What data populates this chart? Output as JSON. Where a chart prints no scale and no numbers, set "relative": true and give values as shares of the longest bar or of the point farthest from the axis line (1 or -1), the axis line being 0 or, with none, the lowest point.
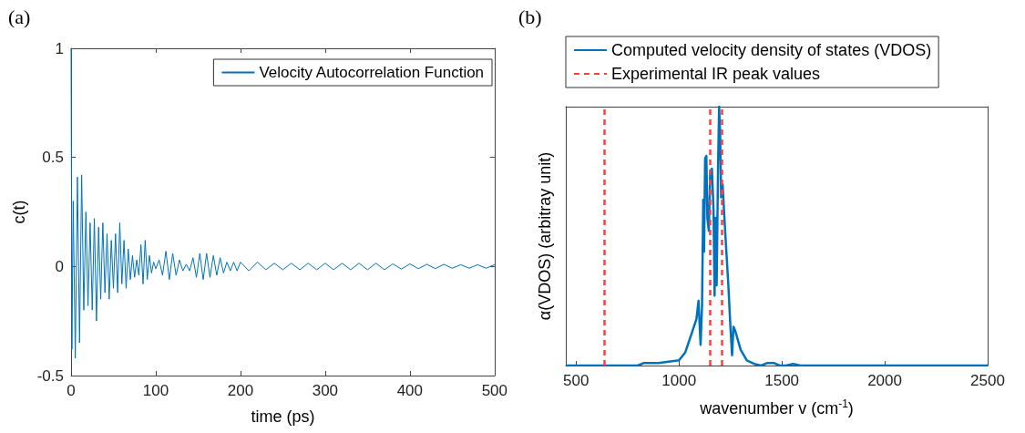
{
  "chart_data": [
    {
      "type": "line",
      "title": "(a)",
      "xlabel": "time (ps)",
      "ylabel": "c(t)",
      "legend": "top right",
      "grid": false,
      "xlim": [
        0,
        500
      ],
      "xticks": [
        0,
        100,
        200,
        300,
        400,
        500
      ],
      "ylim": [
        -0.5,
        1
      ],
      "yticks": [
        -0.5,
        0,
        0.5,
        1
      ],
      "series": [
        {
          "name": "Velocity Autocorrelation Function",
          "color": "#0072bd",
          "x": [
            0,
            1,
            2.5,
            5,
            7.5,
            10,
            12.5,
            15,
            17.5,
            20,
            22.5,
            25,
            27.5,
            30,
            32.5,
            35,
            37.5,
            40,
            42.5,
            45,
            47.5,
            50,
            52.5,
            55,
            57.5,
            60,
            62.5,
            65,
            67.5,
            70,
            72.5,
            75,
            77.5,
            80,
            82.5,
            85,
            87.5,
            90,
            92.5,
            95,
            97.5,
            100,
            104,
            108,
            112,
            116,
            120,
            124,
            128,
            132,
            136,
            140,
            144,
            148,
            152,
            156,
            160,
            164,
            168,
            172,
            176,
            180,
            184,
            188,
            192,
            196,
            200,
            210,
            220,
            230,
            240,
            250,
            260,
            270,
            280,
            290,
            300,
            310,
            320,
            330,
            340,
            350,
            360,
            370,
            380,
            390,
            400,
            410,
            420,
            430,
            440,
            450,
            460,
            470,
            480,
            490,
            500
          ],
          "values": [
            1,
            -0.38,
            0.3,
            -0.42,
            0.41,
            -0.35,
            0.42,
            -0.2,
            0.25,
            -0.18,
            0.2,
            -0.2,
            0.22,
            -0.25,
            0.18,
            -0.15,
            0.2,
            -0.12,
            0.15,
            -0.15,
            0.12,
            -0.1,
            0.15,
            -0.12,
            0.2,
            -0.08,
            0.12,
            -0.1,
            0.08,
            -0.06,
            0.05,
            -0.05,
            0.03,
            -0.04,
            0.1,
            -0.08,
            0.12,
            -0.06,
            0.05,
            -0.03,
            0.02,
            -0.01,
            0.03,
            -0.04,
            0.07,
            -0.06,
            0.06,
            -0.04,
            0.03,
            -0.02,
            0.01,
            -0.02,
            0.04,
            -0.05,
            0.06,
            -0.06,
            0.06,
            -0.05,
            0.05,
            -0.04,
            0.04,
            -0.03,
            0.02,
            -0.02,
            0.02,
            -0.02,
            0.02,
            -0.02,
            0.02,
            -0.015,
            0.015,
            -0.015,
            0.015,
            -0.015,
            0.015,
            -0.015,
            0.015,
            -0.015,
            0.015,
            -0.015,
            0.015,
            -0.015,
            0.015,
            -0.015,
            0.012,
            -0.012,
            0.012,
            -0.01,
            0.01,
            -0.01,
            0.01,
            -0.008,
            0.008,
            -0.008,
            0.008,
            -0.008,
            0.008
          ]
        }
      ]
    },
    {
      "type": "line",
      "title": "(b)",
      "xlabel": "wavenumber v (cm$^{-1}$)",
      "ylabel": "α(VDOS) (arbitray unit)",
      "legend": "top",
      "grid": false,
      "relative": true,
      "xlim": [
        450,
        2500
      ],
      "xticks": [
        500,
        1000,
        1500,
        2000,
        2500
      ],
      "series": [
        {
          "name": "Computed velocity density of states (VDOS)",
          "color": "#0072bd",
          "x": [
            450,
            800,
            830,
            900,
            950,
            1000,
            1030,
            1060,
            1085,
            1095,
            1105,
            1112,
            1118,
            1122,
            1127,
            1133,
            1138,
            1145,
            1152,
            1160,
            1168,
            1173,
            1178,
            1183,
            1190,
            1195,
            1200,
            1205,
            1212,
            1225,
            1240,
            1250,
            1258,
            1265,
            1275,
            1300,
            1330,
            1370,
            1400,
            1430,
            1460,
            1490,
            1520,
            1555,
            1590,
            2500
          ],
          "values": [
            0,
            0,
            0.01,
            0.01,
            0.015,
            0.02,
            0.05,
            0.12,
            0.18,
            0.25,
            0.08,
            0.23,
            0.64,
            0.44,
            0.8,
            0.81,
            0.57,
            0.52,
            0.75,
            0.76,
            0.6,
            0.27,
            0.57,
            0.31,
            0.77,
            1,
            0.9,
            0.65,
            0.7,
            0.51,
            0.31,
            0.15,
            0.04,
            0.15,
            0.13,
            0.06,
            0.02,
            0.005,
            0,
            0.01,
            0.01,
            0,
            0,
            0.006,
            0,
            0
          ]
        }
      ],
      "ref_lines": [
        {
          "axis": "x",
          "value": 637,
          "label": "Experimental IR peak values",
          "color": "#ff4040",
          "line_style": "dashed"
        },
        {
          "axis": "x",
          "value": 1152,
          "color": "#ff4040",
          "line_style": "dashed"
        },
        {
          "axis": "x",
          "value": 1209,
          "color": "#ff4040",
          "line_style": "dashed"
        }
      ]
    }
  ]
}
